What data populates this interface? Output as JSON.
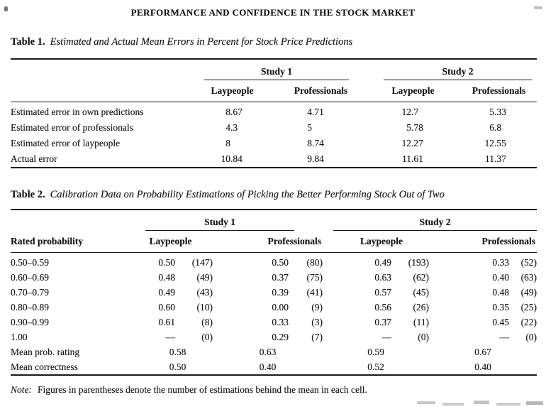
{
  "page": {
    "running_head": "PERFORMANCE AND CONFIDENCE IN THE STOCK MARKET",
    "note_label": "Note:",
    "note_text": "Figures in parentheses denote the number of estimations behind the mean in each cell."
  },
  "table1": {
    "label": "Table 1.",
    "caption": "Estimated and Actual Mean Errors in Percent for Stock Price Predictions",
    "groups": [
      "Study 1",
      "Study 2"
    ],
    "col_headers": [
      "Laypeople",
      "Professionals",
      "Laypeople",
      "Professionals"
    ],
    "rows": [
      {
        "label": "Estimated error in own predictions",
        "values": [
          "8.67",
          "4.71",
          "12.7",
          "5.33"
        ]
      },
      {
        "label": "Estimated error of professionals",
        "values": [
          "4.3",
          "5",
          "5.78",
          "6.8"
        ]
      },
      {
        "label": "Estimated error of laypeople",
        "values": [
          "8",
          "8.74",
          "12.27",
          "12.55"
        ]
      },
      {
        "label": "Actual error",
        "values": [
          "10.84",
          "9.84",
          "11.61",
          "11.37"
        ]
      }
    ]
  },
  "table2": {
    "label": "Table 2.",
    "caption": "Calibration Data on Probability Estimations of Picking the Better Performing Stock Out of Two",
    "stub_header": "Rated probability",
    "groups": [
      "Study 1",
      "Study 2"
    ],
    "col_headers": [
      "Laypeople",
      "Professionals",
      "Laypeople",
      "Professionals"
    ],
    "rows": [
      {
        "label": "0.50–0.59",
        "cells": [
          [
            "0.50",
            "(147)"
          ],
          [
            "0.50",
            "(80)"
          ],
          [
            "0.49",
            "(193)"
          ],
          [
            "0.33",
            "(52)"
          ]
        ]
      },
      {
        "label": "0.60–0.69",
        "cells": [
          [
            "0.48",
            "(49)"
          ],
          [
            "0.37",
            "(75)"
          ],
          [
            "0.63",
            "(62)"
          ],
          [
            "0.40",
            "(63)"
          ]
        ]
      },
      {
        "label": "0.70–0.79",
        "cells": [
          [
            "0.49",
            "(43)"
          ],
          [
            "0.39",
            "(41)"
          ],
          [
            "0.57",
            "(45)"
          ],
          [
            "0.48",
            "(49)"
          ]
        ]
      },
      {
        "label": "0.80–0.89",
        "cells": [
          [
            "0.60",
            "(10)"
          ],
          [
            "0.00",
            "(9)"
          ],
          [
            "0.56",
            "(26)"
          ],
          [
            "0.35",
            "(25)"
          ]
        ]
      },
      {
        "label": "0.90–0.99",
        "cells": [
          [
            "0.61",
            "(8)"
          ],
          [
            "0.33",
            "(3)"
          ],
          [
            "0.37",
            "(11)"
          ],
          [
            "0.45",
            "(22)"
          ]
        ]
      },
      {
        "label": "1.00",
        "cells": [
          [
            "—",
            "(0)"
          ],
          [
            "0.29",
            "(7)"
          ],
          [
            "—",
            "(0)"
          ],
          [
            "—",
            "(0)"
          ]
        ]
      }
    ],
    "summary_rows": [
      {
        "label": "Mean prob. rating",
        "values": [
          "0.58",
          "0.63",
          "0.59",
          "0.67"
        ]
      },
      {
        "label": "Mean correctness",
        "values": [
          "0.50",
          "0.40",
          "0.52",
          "0.40"
        ]
      }
    ]
  }
}
